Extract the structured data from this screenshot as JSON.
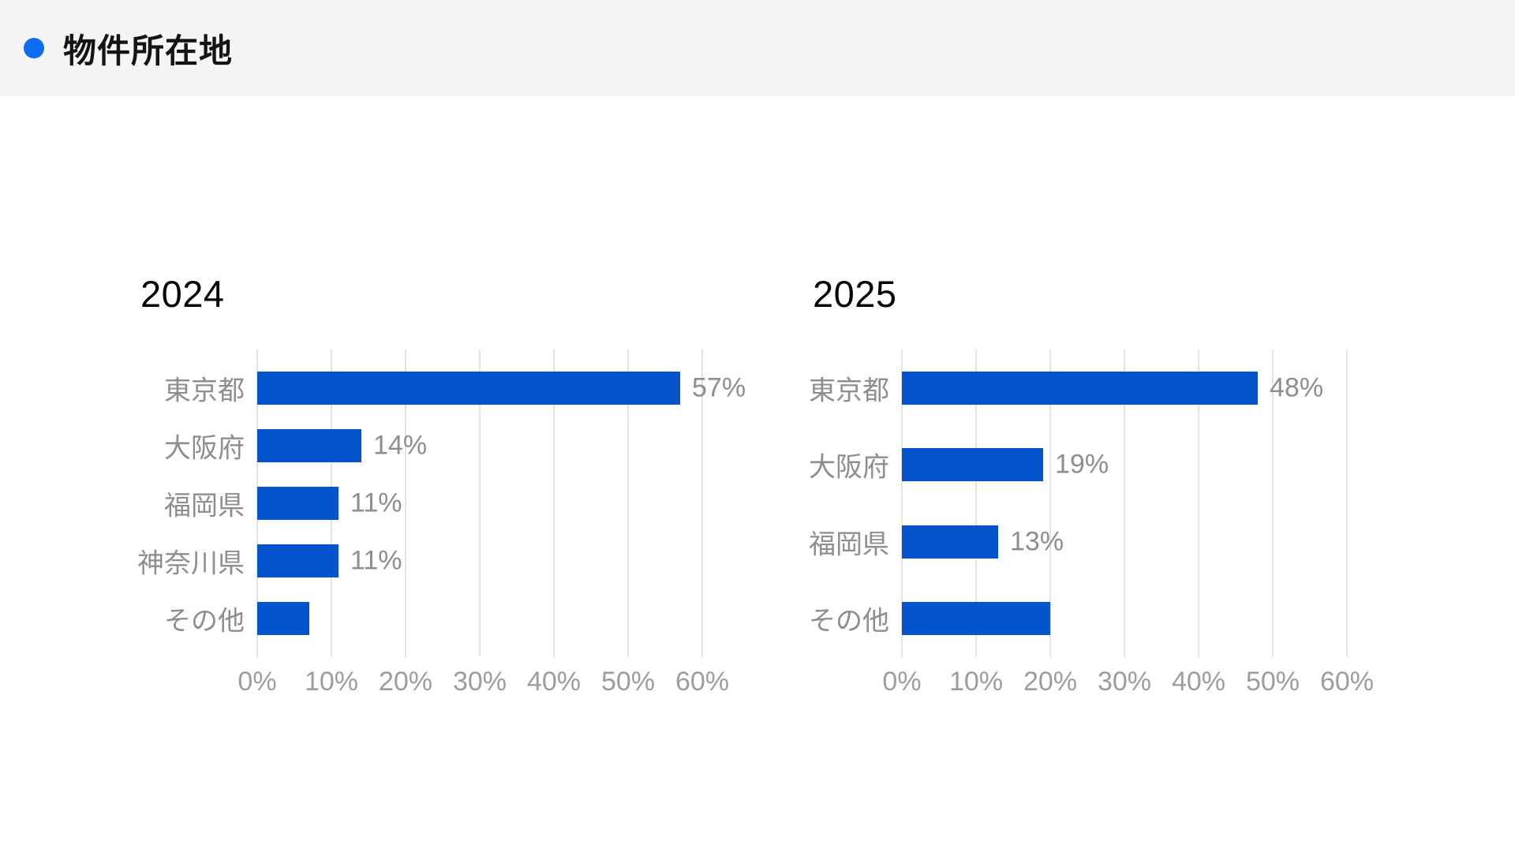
{
  "header": {
    "title": "物件所在地",
    "bullet_color": "#0c6cf2",
    "band_color": "#f5f5f6"
  },
  "colors": {
    "bar_blue": "#0553cd",
    "gridline": "#e3e3e4",
    "label_gray": "#8d8d92",
    "axis_gray": "#9c9ca1"
  },
  "chart_data": [
    {
      "type": "bar",
      "orientation": "horizontal",
      "title": "2024",
      "categories": [
        "東京都",
        "大阪府",
        "福岡県",
        "神奈川県",
        "その他"
      ],
      "values": [
        57,
        14,
        11,
        11,
        7
      ],
      "value_labels": [
        "57%",
        "14%",
        "11%",
        "11%",
        ""
      ],
      "xlim": [
        0,
        60
      ],
      "x_tick_labels": [
        "0%",
        "10%",
        "20%",
        "30%",
        "40%",
        "50%",
        "60%"
      ],
      "bar_color": "#0553cd",
      "grid": true,
      "legend": false
    },
    {
      "type": "bar",
      "orientation": "horizontal",
      "title": "2025",
      "categories": [
        "東京都",
        "大阪府",
        "福岡県",
        "その他"
      ],
      "values": [
        48,
        19,
        13,
        20
      ],
      "value_labels": [
        "48%",
        "19%",
        "13%",
        ""
      ],
      "xlim": [
        0,
        60
      ],
      "x_tick_labels": [
        "0%",
        "10%",
        "20%",
        "30%",
        "40%",
        "50%",
        "60%"
      ],
      "bar_color": "#0553cd",
      "grid": true,
      "legend": false
    }
  ]
}
